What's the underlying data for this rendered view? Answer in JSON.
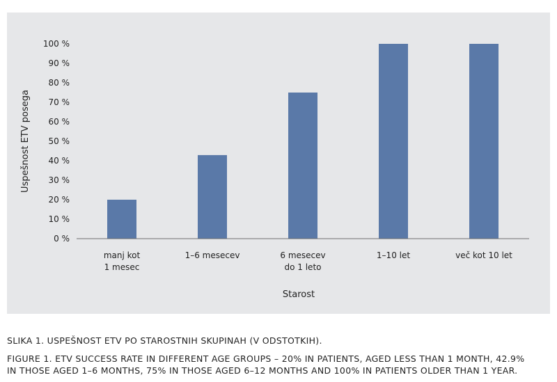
{
  "chart_data": {
    "type": "bar",
    "categories": [
      [
        "manj kot",
        "1 mesec"
      ],
      [
        "1–6 mesecev"
      ],
      [
        "6 mesecev",
        "do 1 leto"
      ],
      [
        "1–10 let"
      ],
      [
        "več kot 10 let"
      ]
    ],
    "values": [
      20,
      42.9,
      75,
      100,
      100
    ],
    "xlabel": "Starost",
    "ylabel": "Uspešnost ETV posega",
    "ylim": [
      0,
      100
    ],
    "yticks": [
      "0 %",
      "10 %",
      "20 %",
      "30 %",
      "40 %",
      "50 %",
      "60 %",
      "70 %",
      "80 %",
      "90 %",
      "100 %"
    ],
    "bar_color": "#5a79a8",
    "grid": false,
    "legend": "none"
  },
  "captions": {
    "slovene": "Slika 1. Uspešnost ETV po starostnih skupinah (v odstotkih).",
    "english_line1": "Figure 1. ETV success rate in different age groups – 20% in patients, aged less than 1 month, 42.9%",
    "english_line2": "in those aged 1–6 months, 75% in those aged 6–12 months and 100% in patients older than 1 year."
  }
}
